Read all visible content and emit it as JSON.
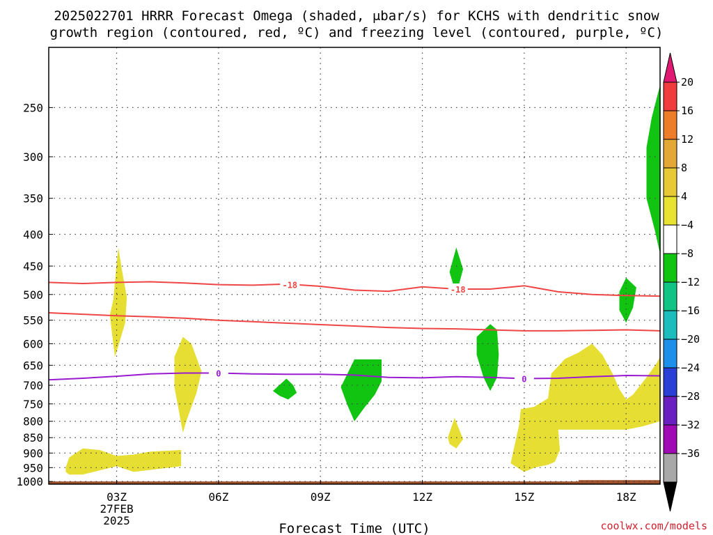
{
  "chart_data": {
    "type": "time-height cross section",
    "title_lines": [
      "2025022701 HRRR Forecast Omega (shaded, μbar/s) for KCHS with dendritic snow",
      "growth region (contoured, red, ºC) and freezing level (contoured, purple, ºC)"
    ],
    "xlabel": "Forecast Time (UTC)",
    "credit": "coolwx.com/models",
    "x_unit": "hours UTC on 27 FEB 2025",
    "x_range": [
      1,
      19
    ],
    "x_ticks": [
      {
        "hour": 3,
        "label": "03Z",
        "sublabels": [
          "27FEB",
          "2025"
        ]
      },
      {
        "hour": 6,
        "label": "06Z"
      },
      {
        "hour": 9,
        "label": "09Z"
      },
      {
        "hour": 12,
        "label": "12Z"
      },
      {
        "hour": 15,
        "label": "15Z"
      },
      {
        "hour": 18,
        "label": "18Z"
      }
    ],
    "y_unit": "hPa",
    "y_scale": "log",
    "y_range": [
      1010,
      200
    ],
    "y_ticks": [
      250,
      300,
      350,
      400,
      450,
      500,
      550,
      600,
      650,
      700,
      750,
      800,
      850,
      900,
      950,
      1000
    ],
    "colorbar": {
      "levels": [
        "20",
        "16",
        "12",
        "8",
        "4",
        "−4",
        "−8",
        "−12",
        "−16",
        "−20",
        "−24",
        "−28",
        "−32",
        "−36"
      ],
      "colors": [
        "#f03c3c",
        "#ee7d2a",
        "#e3a736",
        "#e6c934",
        "#e8e230",
        "#ffffff",
        "#12c412",
        "#11c485",
        "#1dbdbd",
        "#1e90ea",
        "#2a3fd6",
        "#6a1fc0",
        "#a00ab5",
        "#a8a8a8"
      ],
      "top_arrow_color": "#e01a73",
      "bottom_arrow_color": "#000000"
    },
    "dgz_contours": [
      {
        "label": "-18",
        "color": "#f04545",
        "points": [
          [
            1.0,
            478
          ],
          [
            2.0,
            480
          ],
          [
            3.0,
            478
          ],
          [
            4.0,
            477
          ],
          [
            5.0,
            479
          ],
          [
            6.0,
            482
          ],
          [
            7.0,
            483
          ],
          [
            8.0,
            481
          ],
          [
            9.0,
            485
          ],
          [
            10.0,
            492
          ],
          [
            11.0,
            494
          ],
          [
            12.0,
            486
          ],
          [
            13.0,
            490
          ],
          [
            14.0,
            490
          ],
          [
            15.0,
            484
          ],
          [
            16.0,
            495
          ],
          [
            17.0,
            500
          ],
          [
            18.0,
            502
          ],
          [
            19.0,
            503
          ]
        ],
        "label_at": [
          [
            8.1,
            482
          ],
          [
            13.05,
            490
          ]
        ]
      },
      {
        "label": "",
        "color": "#f04545",
        "points": [
          [
            1.0,
            535
          ],
          [
            2.0,
            538
          ],
          [
            3.0,
            541
          ],
          [
            4.0,
            543
          ],
          [
            5.0,
            546
          ],
          [
            6.0,
            550
          ],
          [
            7.0,
            553
          ],
          [
            8.0,
            556
          ],
          [
            9.0,
            559
          ],
          [
            10.0,
            562
          ],
          [
            11.0,
            565
          ],
          [
            12.0,
            567
          ],
          [
            13.0,
            568
          ],
          [
            14.0,
            570
          ],
          [
            15.0,
            572
          ],
          [
            16.0,
            572
          ],
          [
            17.0,
            571
          ],
          [
            18.0,
            570
          ],
          [
            19.0,
            572
          ]
        ]
      }
    ],
    "freezing_level": {
      "label": "0",
      "color": "#9a1ad0",
      "points": [
        [
          1.0,
          686
        ],
        [
          2.0,
          682
        ],
        [
          3.0,
          677
        ],
        [
          4.0,
          671
        ],
        [
          5.0,
          669
        ],
        [
          6.0,
          669
        ],
        [
          7.0,
          671
        ],
        [
          8.0,
          672
        ],
        [
          9.0,
          672
        ],
        [
          10.0,
          674
        ],
        [
          11.0,
          680
        ],
        [
          12.0,
          681
        ],
        [
          13.0,
          678
        ],
        [
          14.0,
          680
        ],
        [
          15.0,
          683
        ],
        [
          16.0,
          682
        ],
        [
          17.0,
          678
        ],
        [
          18.0,
          675
        ],
        [
          19.0,
          676
        ]
      ],
      "label_at": [
        [
          6.0,
          669
        ],
        [
          15.0,
          683
        ]
      ]
    },
    "omega_regions": [
      {
        "level": "4 to 8",
        "color": "#e6de32",
        "points": [
          [
            2.9,
            510
          ],
          [
            3.0,
            445
          ],
          [
            3.05,
            420
          ],
          [
            3.15,
            455
          ],
          [
            3.3,
            505
          ],
          [
            3.25,
            555
          ],
          [
            3.05,
            605
          ],
          [
            2.95,
            630
          ],
          [
            2.9,
            600
          ],
          [
            2.8,
            540
          ]
        ]
      },
      {
        "level": "4 to 8",
        "color": "#e6de32",
        "points": [
          [
            4.7,
            630
          ],
          [
            4.95,
            585
          ],
          [
            5.2,
            600
          ],
          [
            5.5,
            665
          ],
          [
            5.35,
            720
          ],
          [
            5.05,
            800
          ],
          [
            4.95,
            835
          ],
          [
            4.85,
            780
          ],
          [
            4.7,
            705
          ]
        ]
      },
      {
        "level": "4 to 8",
        "color": "#e6de32",
        "points": [
          [
            1.5,
            950
          ],
          [
            1.6,
            915
          ],
          [
            2.0,
            885
          ],
          [
            2.5,
            890
          ],
          [
            3.0,
            910
          ],
          [
            3.5,
            905
          ],
          [
            4.0,
            895
          ],
          [
            4.9,
            890
          ],
          [
            4.9,
            945
          ],
          [
            4.0,
            958
          ],
          [
            3.5,
            965
          ],
          [
            3.0,
            945
          ],
          [
            2.5,
            960
          ],
          [
            2.0,
            975
          ],
          [
            1.6,
            975
          ],
          [
            1.5,
            965
          ]
        ]
      },
      {
        "level": "4 to 8",
        "color": "#e6de32",
        "points": [
          [
            12.75,
            850
          ],
          [
            12.95,
            790
          ],
          [
            13.2,
            855
          ],
          [
            13.0,
            885
          ],
          [
            12.8,
            870
          ]
        ]
      },
      {
        "level": "4 to 8",
        "color": "#e6de32",
        "points": [
          [
            14.6,
            935
          ],
          [
            14.85,
            810
          ],
          [
            14.9,
            765
          ],
          [
            15.3,
            758
          ],
          [
            15.7,
            735
          ],
          [
            15.8,
            670
          ],
          [
            16.2,
            635
          ],
          [
            16.6,
            620
          ],
          [
            17.0,
            600
          ],
          [
            17.3,
            625
          ],
          [
            17.6,
            670
          ],
          [
            17.8,
            710
          ],
          [
            18.0,
            738
          ],
          [
            18.2,
            725
          ],
          [
            18.6,
            680
          ],
          [
            18.9,
            645
          ],
          [
            19.0,
            630
          ],
          [
            19.0,
            800
          ],
          [
            18.5,
            815
          ],
          [
            18.0,
            825
          ],
          [
            16.0,
            825
          ],
          [
            16.05,
            890
          ],
          [
            15.9,
            930
          ],
          [
            15.7,
            940
          ],
          [
            15.3,
            950
          ],
          [
            15.0,
            965
          ],
          [
            14.8,
            950
          ]
        ]
      },
      {
        "level": "-8 to -4",
        "color": "#12c412",
        "points": [
          [
            7.6,
            715
          ],
          [
            8.0,
            683
          ],
          [
            8.2,
            700
          ],
          [
            8.3,
            720
          ],
          [
            8.05,
            738
          ],
          [
            7.8,
            728
          ]
        ]
      },
      {
        "level": "-8 to -4",
        "color": "#12c412",
        "points": [
          [
            9.6,
            705
          ],
          [
            10.0,
            636
          ],
          [
            10.8,
            636
          ],
          [
            10.8,
            690
          ],
          [
            10.6,
            725
          ],
          [
            10.3,
            760
          ],
          [
            10.0,
            800
          ],
          [
            9.8,
            755
          ]
        ]
      },
      {
        "level": "-8 to -4",
        "color": "#12c412",
        "points": [
          [
            12.8,
            460
          ],
          [
            13.0,
            420
          ],
          [
            13.2,
            455
          ],
          [
            13.0,
            500
          ]
        ]
      },
      {
        "level": "-8 to -4",
        "color": "#12c412",
        "points": [
          [
            13.6,
            585
          ],
          [
            14.0,
            558
          ],
          [
            14.2,
            570
          ],
          [
            14.25,
            625
          ],
          [
            14.2,
            680
          ],
          [
            14.0,
            715
          ],
          [
            13.8,
            680
          ],
          [
            13.6,
            625
          ]
        ]
      },
      {
        "level": "-8 to -4",
        "color": "#12c412",
        "points": [
          [
            17.8,
            495
          ],
          [
            18.0,
            470
          ],
          [
            18.3,
            487
          ],
          [
            18.2,
            525
          ],
          [
            18.0,
            555
          ],
          [
            17.8,
            530
          ]
        ]
      },
      {
        "level": "-8 to -4",
        "color": "#12c412",
        "points": [
          [
            18.6,
            290
          ],
          [
            18.75,
            260
          ],
          [
            19.0,
            230
          ],
          [
            19.0,
            430
          ],
          [
            18.85,
            395
          ],
          [
            18.6,
            350
          ]
        ]
      }
    ],
    "terrain": {
      "color": "#a0522d",
      "top_hPa": [
        [
          1.0,
          1000
        ],
        [
          16.6,
          1000
        ],
        [
          16.6,
          995
        ],
        [
          19.0,
          995
        ]
      ]
    }
  }
}
